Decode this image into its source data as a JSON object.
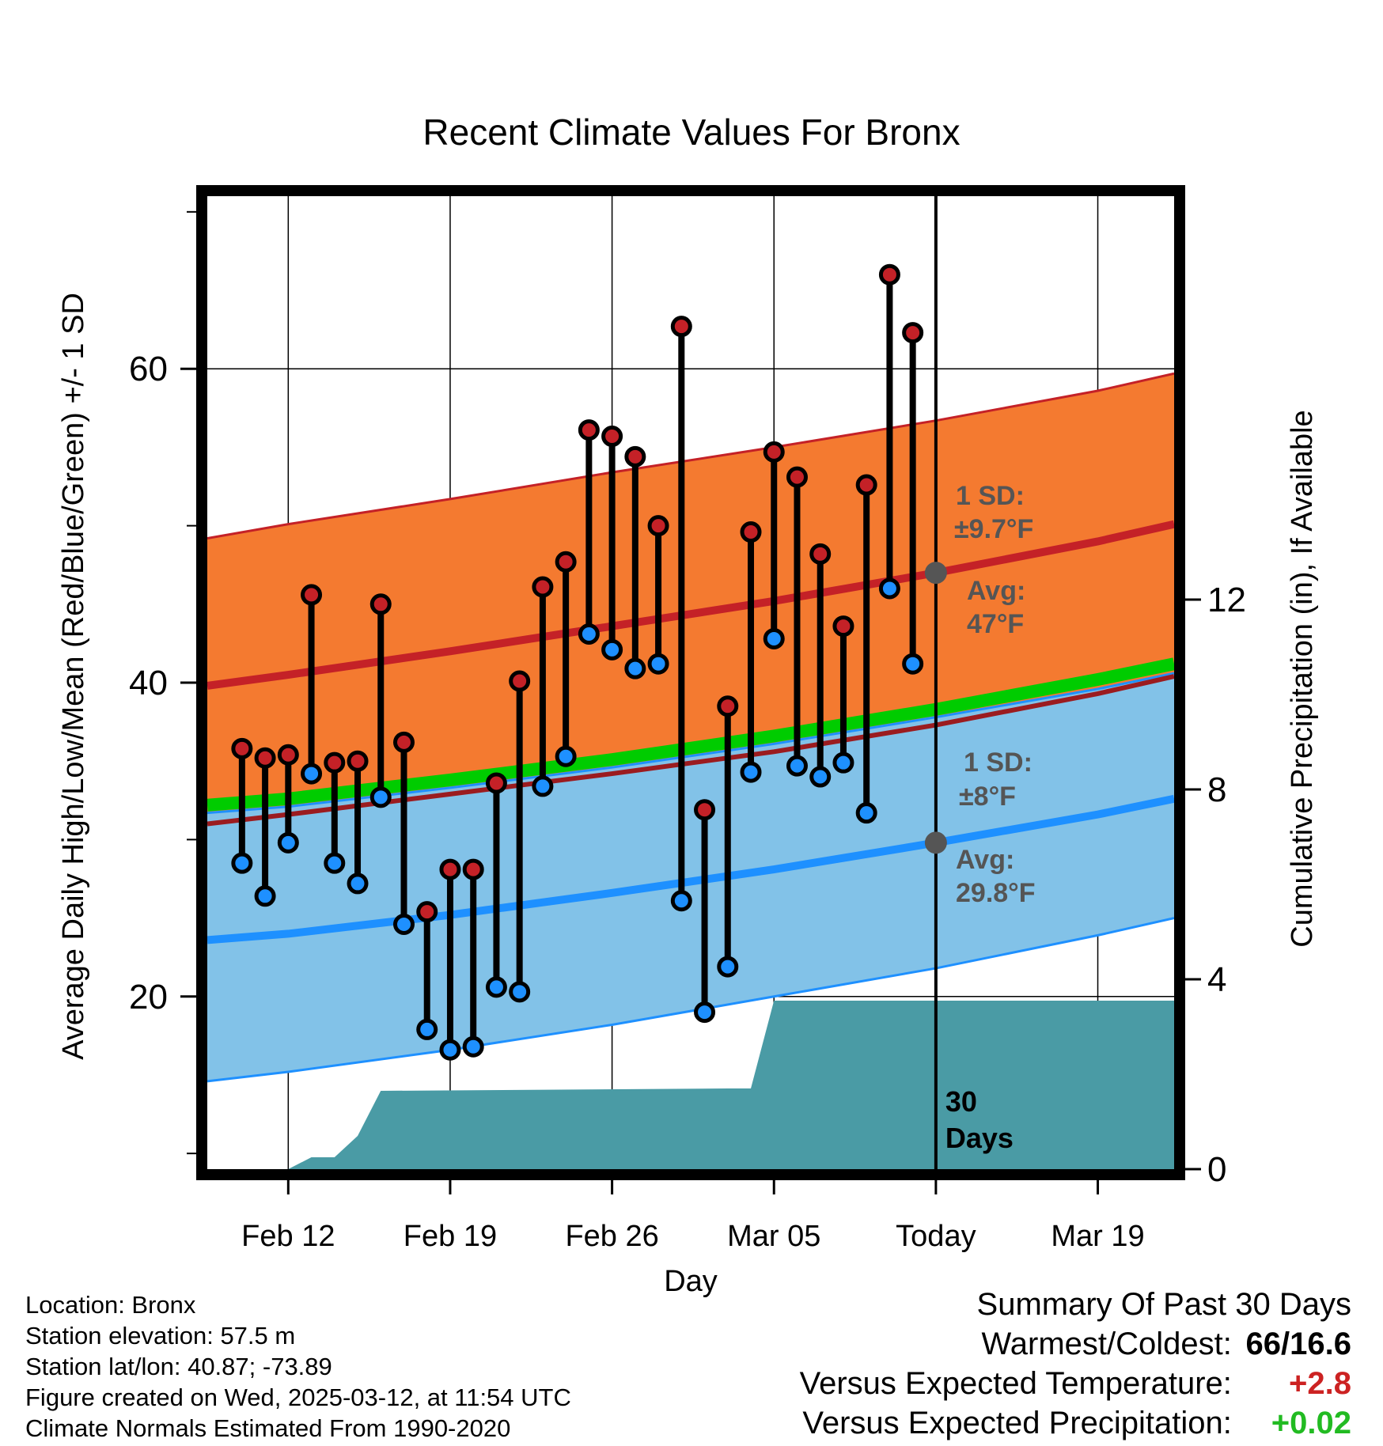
{
  "chart_data": {
    "type": "line",
    "title": "Recent Climate Values For Bronx",
    "xlabel": "Day",
    "ylabel": "Average Daily High/Low/Mean (Red/Blue/Green) +/- 1 SD",
    "y2label": "Cumulative Precipitation (in), If Available",
    "x_start": "Feb 09",
    "x_end": "Mar 22",
    "xlim": [
      -0.5,
      41.3
    ],
    "ylim": [
      9,
      71
    ],
    "y2lim": [
      0,
      20.5
    ],
    "xticks": [
      {
        "day": 3,
        "label": "Feb 12"
      },
      {
        "day": 10,
        "label": "Feb 19"
      },
      {
        "day": 17,
        "label": "Feb 26"
      },
      {
        "day": 24,
        "label": "Mar 05"
      },
      {
        "day": 31,
        "label": "Today"
      },
      {
        "day": 38,
        "label": "Mar 19"
      }
    ],
    "yticks": [
      20,
      40,
      60
    ],
    "y2ticks": [
      0,
      4,
      8,
      12
    ],
    "grid": true,
    "today_day": 31,
    "today_marker_label": "30 Days",
    "normals": {
      "days": [
        -0.5,
        3,
        10,
        17,
        24,
        31,
        38,
        41.3
      ],
      "high_avg": [
        39.8,
        40.5,
        42.0,
        43.6,
        45.2,
        47.0,
        49.0,
        50.1
      ],
      "high_upper": [
        49.2,
        50.1,
        51.7,
        53.4,
        55.0,
        56.7,
        58.6,
        59.7
      ],
      "high_lower": [
        31.0,
        31.6,
        32.9,
        34.2,
        35.6,
        37.3,
        39.3,
        40.4
      ],
      "low_avg": [
        23.6,
        24.0,
        25.2,
        26.6,
        28.1,
        29.8,
        31.6,
        32.6
      ],
      "low_upper": [
        31.7,
        32.1,
        33.3,
        34.6,
        36.1,
        37.8,
        39.6,
        40.6
      ],
      "low_lower": [
        14.6,
        15.2,
        16.6,
        18.2,
        20.0,
        21.8,
        23.9,
        25.0
      ],
      "mean_avg": [
        32.2,
        32.6,
        33.8,
        35.1,
        36.6,
        38.3,
        40.2,
        41.2
      ]
    },
    "high_sd_label": "1 SD:",
    "high_sd_value": "±9.7°F",
    "high_avg_label": "Avg:",
    "high_avg_value": "47°F",
    "low_sd_label": "1 SD:",
    "low_sd_value": "±8°F",
    "low_avg_label": "Avg:",
    "low_avg_value": "29.8°F",
    "series": [
      {
        "name": "High",
        "color": "#c42127",
        "values": [
          35.8,
          35.2,
          35.4,
          45.6,
          34.9,
          35.0,
          45.0,
          36.2,
          25.4,
          28.1,
          28.1,
          33.6,
          40.1,
          46.1,
          47.7,
          56.1,
          55.7,
          54.4,
          50.0,
          62.7,
          31.9,
          38.5,
          49.6,
          54.7,
          53.1,
          48.2,
          43.6,
          52.6,
          66.0,
          62.3
        ]
      },
      {
        "name": "Low",
        "color": "#1e90ff",
        "values": [
          28.5,
          26.4,
          29.8,
          34.2,
          28.5,
          27.2,
          32.7,
          24.6,
          17.9,
          16.6,
          16.8,
          20.6,
          20.3,
          33.4,
          35.3,
          43.1,
          42.1,
          40.9,
          41.2,
          26.1,
          19.0,
          21.9,
          34.3,
          42.8,
          34.7,
          34.0,
          34.9,
          31.7,
          46.0,
          41.2
        ]
      }
    ],
    "days": [
      1,
      2,
      3,
      4,
      5,
      6,
      7,
      8,
      9,
      10,
      11,
      12,
      13,
      14,
      15,
      16,
      17,
      18,
      19,
      20,
      21,
      22,
      23,
      24,
      25,
      26,
      27,
      28,
      29,
      30
    ],
    "precip_cumulative": {
      "days": [
        3,
        4,
        5,
        6,
        7,
        22,
        23,
        24,
        41.3
      ],
      "values": [
        0,
        0.25,
        0.25,
        0.7,
        1.65,
        1.7,
        1.7,
        3.55,
        3.55
      ]
    },
    "colors": {
      "high_band": "#f47a30",
      "low_band": "#82c2e8",
      "high_line": "#c42127",
      "low_line": "#1e90ff",
      "mean_line": "#00cc00",
      "precip": "#4a9ba5",
      "annotation": "#555555"
    }
  },
  "footer": {
    "location": "Location: Bronx",
    "elevation": "Station elevation: 57.5 m",
    "latlon": "Station lat/lon: 40.87; -73.89",
    "created": "Figure created on Wed, 2025-03-12, at 11:54 UTC",
    "normals": "Climate Normals Estimated From 1990-2020"
  },
  "summary": {
    "heading": "Summary Of Past 30 Days",
    "warm_cold_label": "Warmest/Coldest:",
    "warm_cold_value": "66/16.6",
    "temp_label": "Versus Expected Temperature:",
    "temp_value": "+2.8",
    "precip_label": "Versus Expected Precipitation:",
    "precip_value": "+0.02"
  }
}
